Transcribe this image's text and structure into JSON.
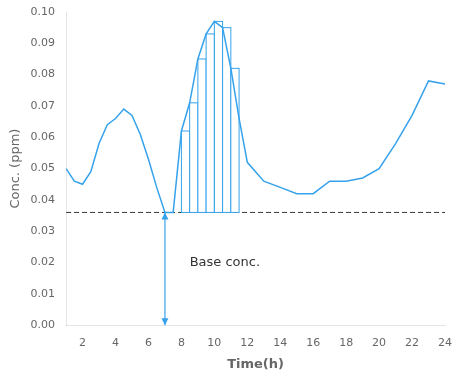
{
  "chart_data": {
    "type": "line",
    "xlabel": "Time(h)",
    "ylabel": "Conc. (ppm)",
    "xlim": [
      1,
      24
    ],
    "ylim": [
      0,
      0.1
    ],
    "xticks": [
      2,
      4,
      6,
      8,
      10,
      12,
      14,
      16,
      18,
      20,
      22,
      24
    ],
    "yticks": [
      {
        "value": 0,
        "label": "0.00"
      },
      {
        "value": 0.01,
        "label": "0.01"
      },
      {
        "value": 0.02,
        "label": "0.02"
      },
      {
        "value": 0.03,
        "label": "0.03"
      },
      {
        "value": 0.04,
        "label": "0.04"
      },
      {
        "value": 0.05,
        "label": "0.05"
      },
      {
        "value": 0.06,
        "label": "0.06"
      },
      {
        "value": 0.07,
        "label": "0.07"
      },
      {
        "value": 0.08,
        "label": "0.08"
      },
      {
        "value": 0.09,
        "label": "0.09"
      },
      {
        "value": 0.1,
        "label": "0.10"
      }
    ],
    "grid": false,
    "x": [
      1,
      1.5,
      2,
      2.5,
      3,
      3.5,
      4,
      4.5,
      5,
      5.5,
      6,
      6.5,
      7,
      7.5,
      8,
      8.5,
      9,
      9.5,
      10,
      10.5,
      11,
      11.5,
      12,
      13,
      14,
      15,
      16,
      17,
      18,
      19,
      20,
      21,
      22,
      23,
      24
    ],
    "values": [
      0.05,
      0.046,
      0.045,
      0.049,
      0.058,
      0.064,
      0.066,
      0.069,
      0.067,
      0.061,
      0.053,
      0.044,
      0.036,
      0.036,
      0.062,
      0.071,
      0.085,
      0.093,
      0.097,
      0.095,
      0.082,
      0.066,
      0.052,
      0.046,
      0.044,
      0.042,
      0.042,
      0.046,
      0.046,
      0.047,
      0.05,
      0.058,
      0.067,
      0.078,
      0.077
    ],
    "bars": {
      "x_left": [
        8,
        8.5,
        9,
        9.5,
        10,
        10.5,
        11
      ],
      "x_right": [
        8.5,
        9,
        9.5,
        10,
        10.5,
        11,
        11.5
      ],
      "values": [
        0.062,
        0.071,
        0.085,
        0.093,
        0.097,
        0.095,
        0.082
      ],
      "base": 0.036
    },
    "reference_line": {
      "value": 0.036,
      "line_style": "dashed"
    },
    "arrow": {
      "x": 7,
      "y_start": 0,
      "y_end": 0.036
    },
    "annotations": [
      {
        "text": "Base conc.",
        "x": 8.5,
        "y": 0.019
      }
    ]
  }
}
